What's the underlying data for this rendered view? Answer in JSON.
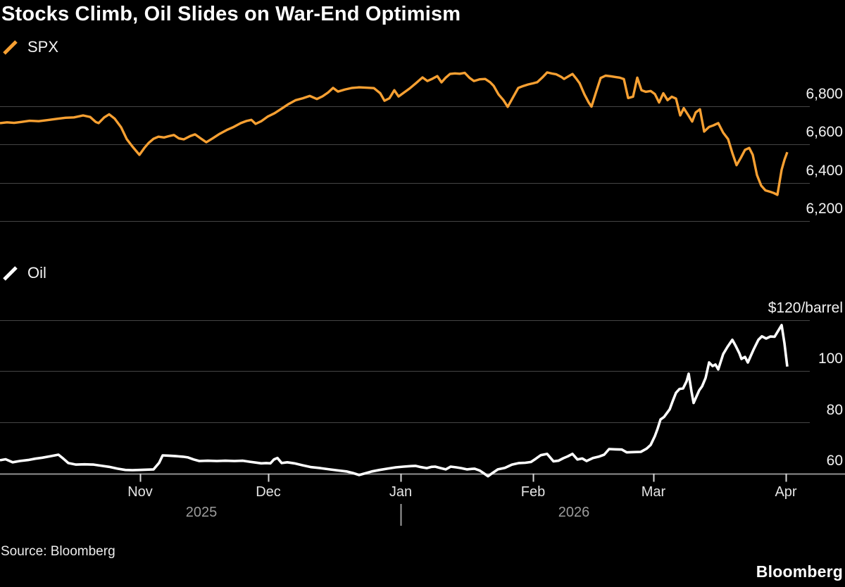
{
  "title": "Stocks Climb, Oil Slides on War-End Optimism",
  "source": "Source: Bloomberg",
  "brand": "Bloomberg",
  "colors": {
    "background": "#000000",
    "spx": "#F7A032",
    "oil": "#FFFFFF",
    "grid": "#454545",
    "axis": "#909090",
    "tick": "#D8D8D8",
    "year_separator": "#9c9c9c"
  },
  "x_axis": {
    "months": [
      "Nov",
      "Dec",
      "Jan",
      "Feb",
      "Mar",
      "Apr"
    ],
    "years": [
      "2025",
      "2026"
    ]
  },
  "chart_data": [
    {
      "type": "line",
      "name": "SPX",
      "color": "#F7A032",
      "ylim": [
        6200,
        7000
      ],
      "legend_position": "top-left",
      "grid": true,
      "yticks": [
        {
          "value": 6800,
          "label": "6,800"
        },
        {
          "value": 6600,
          "label": "6,600"
        },
        {
          "value": 6400,
          "label": "6,400"
        },
        {
          "value": 6200,
          "label": "6,200"
        }
      ],
      "points": [
        [
          0,
          6712
        ],
        [
          10,
          6716
        ],
        [
          20,
          6713
        ],
        [
          30,
          6718
        ],
        [
          42,
          6724
        ],
        [
          55,
          6722
        ],
        [
          68,
          6728
        ],
        [
          80,
          6734
        ],
        [
          93,
          6740
        ],
        [
          105,
          6742
        ],
        [
          118,
          6752
        ],
        [
          128,
          6744
        ],
        [
          136,
          6718
        ],
        [
          140,
          6712
        ],
        [
          148,
          6742
        ],
        [
          155,
          6758
        ],
        [
          163,
          6735
        ],
        [
          172,
          6690
        ],
        [
          180,
          6628
        ],
        [
          188,
          6590
        ],
        [
          198,
          6546
        ],
        [
          205,
          6582
        ],
        [
          211,
          6608
        ],
        [
          218,
          6630
        ],
        [
          225,
          6641
        ],
        [
          233,
          6637
        ],
        [
          240,
          6644
        ],
        [
          247,
          6650
        ],
        [
          254,
          6632
        ],
        [
          261,
          6627
        ],
        [
          270,
          6644
        ],
        [
          277,
          6653
        ],
        [
          285,
          6632
        ],
        [
          293,
          6612
        ],
        [
          302,
          6632
        ],
        [
          312,
          6656
        ],
        [
          322,
          6676
        ],
        [
          332,
          6692
        ],
        [
          342,
          6712
        ],
        [
          350,
          6723
        ],
        [
          357,
          6729
        ],
        [
          363,
          6708
        ],
        [
          371,
          6722
        ],
        [
          380,
          6746
        ],
        [
          390,
          6764
        ],
        [
          400,
          6788
        ],
        [
          410,
          6812
        ],
        [
          420,
          6832
        ],
        [
          430,
          6842
        ],
        [
          440,
          6854
        ],
        [
          450,
          6838
        ],
        [
          458,
          6852
        ],
        [
          466,
          6872
        ],
        [
          473,
          6896
        ],
        [
          480,
          6877
        ],
        [
          490,
          6888
        ],
        [
          500,
          6896
        ],
        [
          510,
          6899
        ],
        [
          520,
          6897
        ],
        [
          531,
          6895
        ],
        [
          540,
          6868
        ],
        [
          546,
          6829
        ],
        [
          553,
          6842
        ],
        [
          560,
          6884
        ],
        [
          566,
          6851
        ],
        [
          573,
          6870
        ],
        [
          582,
          6894
        ],
        [
          591,
          6922
        ],
        [
          600,
          6951
        ],
        [
          607,
          6932
        ],
        [
          614,
          6944
        ],
        [
          621,
          6958
        ],
        [
          627,
          6925
        ],
        [
          633,
          6950
        ],
        [
          639,
          6969
        ],
        [
          646,
          6972
        ],
        [
          653,
          6970
        ],
        [
          660,
          6975
        ],
        [
          667,
          6948
        ],
        [
          673,
          6932
        ],
        [
          681,
          6941
        ],
        [
          689,
          6943
        ],
        [
          696,
          6926
        ],
        [
          701,
          6907
        ],
        [
          708,
          6862
        ],
        [
          715,
          6832
        ],
        [
          721,
          6797
        ],
        [
          729,
          6850
        ],
        [
          736,
          6896
        ],
        [
          743,
          6906
        ],
        [
          750,
          6914
        ],
        [
          757,
          6920
        ],
        [
          763,
          6926
        ],
        [
          770,
          6950
        ],
        [
          777,
          6977
        ],
        [
          784,
          6971
        ],
        [
          790,
          6967
        ],
        [
          797,
          6954
        ],
        [
          801,
          6943
        ],
        [
          807,
          6956
        ],
        [
          813,
          6969
        ],
        [
          818,
          6946
        ],
        [
          823,
          6921
        ],
        [
          830,
          6862
        ],
        [
          836,
          6820
        ],
        [
          840,
          6798
        ],
        [
          847,
          6880
        ],
        [
          853,
          6948
        ],
        [
          860,
          6960
        ],
        [
          867,
          6957
        ],
        [
          874,
          6953
        ],
        [
          880,
          6950
        ],
        [
          886,
          6942
        ],
        [
          892,
          6843
        ],
        [
          899,
          6850
        ],
        [
          905,
          6950
        ],
        [
          911,
          6884
        ],
        [
          917,
          6876
        ],
        [
          924,
          6880
        ],
        [
          930,
          6864
        ],
        [
          936,
          6820
        ],
        [
          942,
          6868
        ],
        [
          948,
          6832
        ],
        [
          954,
          6850
        ],
        [
          960,
          6840
        ],
        [
          966,
          6752
        ],
        [
          971,
          6790
        ],
        [
          977,
          6756
        ],
        [
          983,
          6720
        ],
        [
          988,
          6768
        ],
        [
          994,
          6784
        ],
        [
          1000,
          6668
        ],
        [
          1007,
          6692
        ],
        [
          1013,
          6700
        ],
        [
          1020,
          6712
        ],
        [
          1027,
          6662
        ],
        [
          1034,
          6628
        ],
        [
          1040,
          6556
        ],
        [
          1046,
          6492
        ],
        [
          1052,
          6530
        ],
        [
          1058,
          6572
        ],
        [
          1064,
          6582
        ],
        [
          1069,
          6546
        ],
        [
          1075,
          6440
        ],
        [
          1081,
          6385
        ],
        [
          1087,
          6360
        ],
        [
          1093,
          6354
        ],
        [
          1099,
          6346
        ],
        [
          1104,
          6337
        ],
        [
          1110,
          6468
        ],
        [
          1114,
          6520
        ],
        [
          1118,
          6560
        ]
      ]
    },
    {
      "type": "line",
      "name": "Oil",
      "color": "#FFFFFF",
      "ylim": [
        55,
        125
      ],
      "legend_position": "middle-left",
      "grid": true,
      "yticks": [
        {
          "value": 120,
          "label": "$120/barrel"
        },
        {
          "value": 100,
          "label": "100"
        },
        {
          "value": 80,
          "label": "80"
        },
        {
          "value": 60,
          "label": "60"
        }
      ],
      "points": [
        [
          0,
          65.0
        ],
        [
          8,
          65.4
        ],
        [
          18,
          64.2
        ],
        [
          28,
          64.7
        ],
        [
          40,
          65.1
        ],
        [
          50,
          65.6
        ],
        [
          60,
          66.0
        ],
        [
          70,
          66.5
        ],
        [
          83,
          67.2
        ],
        [
          90,
          65.6
        ],
        [
          97,
          63.9
        ],
        [
          108,
          63.3
        ],
        [
          120,
          63.4
        ],
        [
          133,
          63.3
        ],
        [
          145,
          62.8
        ],
        [
          155,
          62.4
        ],
        [
          167,
          61.7
        ],
        [
          178,
          61.2
        ],
        [
          188,
          61.1
        ],
        [
          198,
          61.2
        ],
        [
          208,
          61.3
        ],
        [
          218,
          61.4
        ],
        [
          226,
          64.0
        ],
        [
          231,
          66.9
        ],
        [
          240,
          66.8
        ],
        [
          250,
          66.6
        ],
        [
          260,
          66.4
        ],
        [
          267,
          66.1
        ],
        [
          275,
          65.3
        ],
        [
          283,
          64.7
        ],
        [
          295,
          64.8
        ],
        [
          308,
          64.7
        ],
        [
          320,
          64.8
        ],
        [
          333,
          64.7
        ],
        [
          345,
          64.8
        ],
        [
          355,
          64.4
        ],
        [
          363,
          64.1
        ],
        [
          371,
          63.8
        ],
        [
          378,
          63.9
        ],
        [
          384,
          63.8
        ],
        [
          389,
          65.3
        ],
        [
          394,
          65.9
        ],
        [
          400,
          63.9
        ],
        [
          408,
          64.2
        ],
        [
          418,
          63.8
        ],
        [
          430,
          63.0
        ],
        [
          442,
          62.3
        ],
        [
          455,
          61.9
        ],
        [
          468,
          61.4
        ],
        [
          480,
          61.0
        ],
        [
          492,
          60.6
        ],
        [
          501,
          60.0
        ],
        [
          510,
          59.2
        ],
        [
          519,
          59.9
        ],
        [
          528,
          60.6
        ],
        [
          539,
          61.2
        ],
        [
          550,
          61.7
        ],
        [
          562,
          62.2
        ],
        [
          573,
          62.5
        ],
        [
          584,
          62.7
        ],
        [
          590,
          62.8
        ],
        [
          598,
          62.3
        ],
        [
          606,
          61.9
        ],
        [
          613,
          62.4
        ],
        [
          618,
          62.5
        ],
        [
          626,
          61.9
        ],
        [
          633,
          61.4
        ],
        [
          640,
          62.5
        ],
        [
          648,
          62.2
        ],
        [
          655,
          61.9
        ],
        [
          663,
          61.4
        ],
        [
          670,
          61.6
        ],
        [
          674,
          61.7
        ],
        [
          681,
          61.0
        ],
        [
          687,
          59.9
        ],
        [
          693,
          58.7
        ],
        [
          700,
          60.1
        ],
        [
          707,
          61.4
        ],
        [
          717,
          62.0
        ],
        [
          727,
          63.3
        ],
        [
          737,
          63.9
        ],
        [
          746,
          64.0
        ],
        [
          754,
          64.3
        ],
        [
          761,
          65.6
        ],
        [
          768,
          67.0
        ],
        [
          777,
          67.5
        ],
        [
          786,
          64.6
        ],
        [
          793,
          64.8
        ],
        [
          800,
          65.8
        ],
        [
          806,
          66.5
        ],
        [
          813,
          67.5
        ],
        [
          820,
          65.3
        ],
        [
          827,
          65.7
        ],
        [
          833,
          64.7
        ],
        [
          842,
          65.9
        ],
        [
          850,
          66.4
        ],
        [
          858,
          67.2
        ],
        [
          865,
          69.4
        ],
        [
          874,
          69.3
        ],
        [
          883,
          69.2
        ],
        [
          890,
          68.1
        ],
        [
          900,
          68.2
        ],
        [
          910,
          68.3
        ],
        [
          918,
          69.5
        ],
        [
          924,
          71.0
        ],
        [
          930,
          74.5
        ],
        [
          934,
          77.5
        ],
        [
          938,
          81.0
        ],
        [
          943,
          82.0
        ],
        [
          947,
          83.5
        ],
        [
          951,
          85.0
        ],
        [
          955,
          88.0
        ],
        [
          960,
          91.5
        ],
        [
          965,
          93.0
        ],
        [
          970,
          93.2
        ],
        [
          975,
          96.0
        ],
        [
          978,
          99.0
        ],
        [
          982,
          92.0
        ],
        [
          985,
          87.5
        ],
        [
          989,
          90.0
        ],
        [
          993,
          92.5
        ],
        [
          997,
          94.0
        ],
        [
          1002,
          97.3
        ],
        [
          1007,
          103.4
        ],
        [
          1012,
          102.0
        ],
        [
          1016,
          102.6
        ],
        [
          1020,
          100.7
        ],
        [
          1027,
          106.7
        ],
        [
          1033,
          109.5
        ],
        [
          1040,
          112.3
        ],
        [
          1045,
          109.8
        ],
        [
          1050,
          107.0
        ],
        [
          1053,
          104.8
        ],
        [
          1058,
          105.6
        ],
        [
          1062,
          103.4
        ],
        [
          1070,
          108.4
        ],
        [
          1077,
          112.3
        ],
        [
          1082,
          113.7
        ],
        [
          1088,
          112.8
        ],
        [
          1094,
          113.6
        ],
        [
          1100,
          113.5
        ],
        [
          1105,
          115.8
        ],
        [
          1110,
          118.1
        ],
        [
          1114,
          111.0
        ],
        [
          1118,
          101.8
        ]
      ]
    }
  ]
}
